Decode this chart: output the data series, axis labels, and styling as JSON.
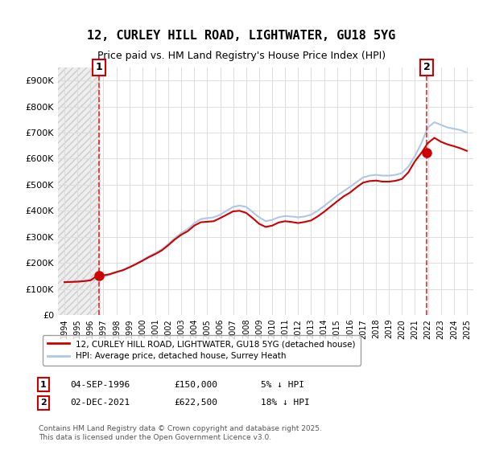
{
  "title": "12, CURLEY HILL ROAD, LIGHTWATER, GU18 5YG",
  "subtitle": "Price paid vs. HM Land Registry's House Price Index (HPI)",
  "ylabel": "",
  "ylim": [
    0,
    950000
  ],
  "yticks": [
    0,
    100000,
    200000,
    300000,
    400000,
    500000,
    600000,
    700000,
    800000,
    900000
  ],
  "ytick_labels": [
    "£0",
    "£100K",
    "£200K",
    "£300K",
    "£400K",
    "£500K",
    "£600K",
    "£700K",
    "£800K",
    "£900K"
  ],
  "hpi_color": "#aec6e8",
  "price_color": "#cc0000",
  "annotation_color": "#cc0000",
  "bg_hatch_color": "#e8e8e8",
  "legend_label_price": "12, CURLEY HILL ROAD, LIGHTWATER, GU18 5YG (detached house)",
  "legend_label_hpi": "HPI: Average price, detached house, Surrey Heath",
  "sale1_label": "1",
  "sale1_date": "04-SEP-1996",
  "sale1_price": "£150,000",
  "sale1_note": "5% ↓ HPI",
  "sale2_label": "2",
  "sale2_date": "02-DEC-2021",
  "sale2_price": "£622,500",
  "sale2_note": "18% ↓ HPI",
  "footer": "Contains HM Land Registry data © Crown copyright and database right 2025.\nThis data is licensed under the Open Government Licence v3.0.",
  "sale1_x": 1996.67,
  "sale1_y": 150000,
  "sale2_x": 2021.92,
  "sale2_y": 622500,
  "hpi_x": [
    1994.0,
    1994.5,
    1995.0,
    1995.5,
    1996.0,
    1996.5,
    1997.0,
    1997.5,
    1998.0,
    1998.5,
    1999.0,
    1999.5,
    2000.0,
    2000.5,
    2001.0,
    2001.5,
    2002.0,
    2002.5,
    2003.0,
    2003.5,
    2004.0,
    2004.5,
    2005.0,
    2005.5,
    2006.0,
    2006.5,
    2007.0,
    2007.5,
    2008.0,
    2008.5,
    2009.0,
    2009.5,
    2010.0,
    2010.5,
    2011.0,
    2011.5,
    2012.0,
    2012.5,
    2013.0,
    2013.5,
    2014.0,
    2014.5,
    2015.0,
    2015.5,
    2016.0,
    2016.5,
    2017.0,
    2017.5,
    2018.0,
    2018.5,
    2019.0,
    2019.5,
    2020.0,
    2020.5,
    2021.0,
    2021.5,
    2022.0,
    2022.5,
    2023.0,
    2023.5,
    2024.0,
    2024.5,
    2025.0
  ],
  "hpi_y": [
    126000,
    127000,
    128000,
    130000,
    133000,
    138000,
    145000,
    155000,
    163000,
    172000,
    183000,
    196000,
    210000,
    225000,
    238000,
    252000,
    272000,
    295000,
    315000,
    330000,
    352000,
    368000,
    372000,
    375000,
    385000,
    400000,
    415000,
    420000,
    415000,
    395000,
    375000,
    360000,
    365000,
    375000,
    380000,
    378000,
    375000,
    378000,
    385000,
    400000,
    418000,
    438000,
    458000,
    475000,
    492000,
    510000,
    528000,
    535000,
    538000,
    535000,
    535000,
    538000,
    545000,
    570000,
    610000,
    660000,
    720000,
    740000,
    730000,
    720000,
    715000,
    710000,
    700000
  ],
  "price_x": [
    1994.0,
    1994.5,
    1995.0,
    1995.5,
    1996.0,
    1996.5,
    1997.0,
    1997.5,
    1998.0,
    1998.5,
    1999.0,
    1999.5,
    2000.0,
    2000.5,
    2001.0,
    2001.5,
    2002.0,
    2002.5,
    2003.0,
    2003.5,
    2004.0,
    2004.5,
    2005.0,
    2005.5,
    2006.0,
    2006.5,
    2007.0,
    2007.5,
    2008.0,
    2008.5,
    2009.0,
    2009.5,
    2010.0,
    2010.5,
    2011.0,
    2011.5,
    2012.0,
    2012.5,
    2013.0,
    2013.5,
    2014.0,
    2014.5,
    2015.0,
    2015.5,
    2016.0,
    2016.5,
    2017.0,
    2017.5,
    2018.0,
    2018.5,
    2019.0,
    2019.5,
    2020.0,
    2020.5,
    2021.0,
    2021.5,
    2022.0,
    2022.5,
    2023.0,
    2023.5,
    2024.0,
    2024.5,
    2025.0
  ],
  "price_y": [
    126000,
    127000,
    128000,
    130000,
    133000,
    150000,
    152000,
    157000,
    165000,
    172000,
    183000,
    195000,
    208000,
    222000,
    234000,
    248000,
    268000,
    290000,
    308000,
    322000,
    343000,
    356000,
    358000,
    360000,
    372000,
    385000,
    398000,
    400000,
    392000,
    372000,
    350000,
    338000,
    343000,
    355000,
    360000,
    357000,
    353000,
    357000,
    363000,
    378000,
    396000,
    416000,
    436000,
    455000,
    470000,
    490000,
    508000,
    514000,
    516000,
    512000,
    512000,
    515000,
    522000,
    548000,
    590000,
    622500,
    660000,
    680000,
    665000,
    655000,
    648000,
    640000,
    630000
  ],
  "xlim_left": 1993.5,
  "xlim_right": 2025.5,
  "xticks": [
    1994,
    1995,
    1996,
    1997,
    1998,
    1999,
    2000,
    2001,
    2002,
    2003,
    2004,
    2005,
    2006,
    2007,
    2008,
    2009,
    2010,
    2011,
    2012,
    2013,
    2014,
    2015,
    2016,
    2017,
    2018,
    2019,
    2020,
    2021,
    2022,
    2023,
    2024,
    2025
  ]
}
